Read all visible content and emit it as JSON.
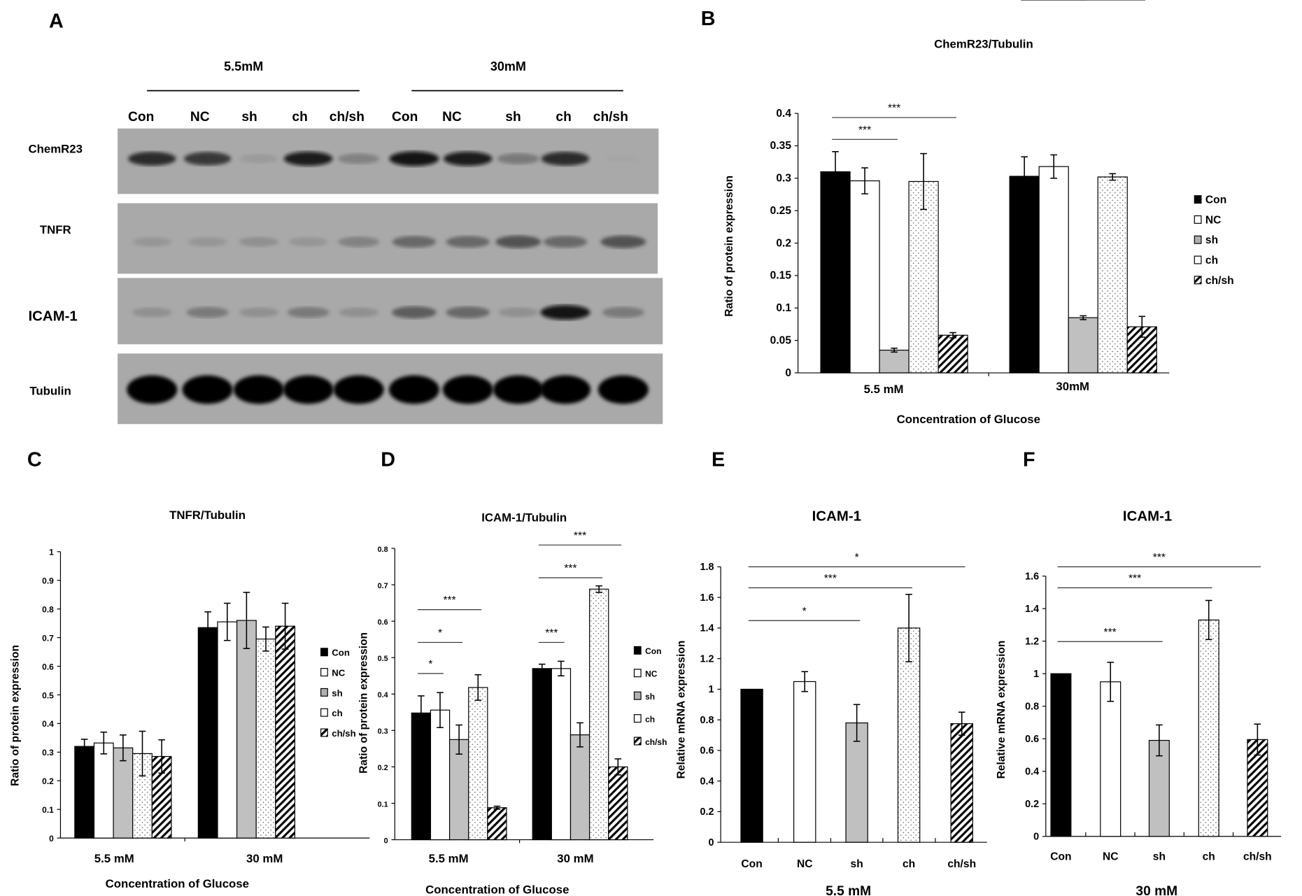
{
  "panel_labels": [
    "A",
    "B",
    "C",
    "D",
    "E",
    "F"
  ],
  "blot": {
    "groups": [
      "5.5mM",
      "30mM"
    ],
    "lanes": [
      "Con",
      "NC",
      "sh",
      "ch",
      "ch/sh",
      "Con",
      "NC",
      "sh",
      "ch",
      "ch/sh"
    ],
    "rows": [
      {
        "label": "ChemR23",
        "band_intensity": [
          0.85,
          0.8,
          0.25,
          0.9,
          0.45,
          0.95,
          0.9,
          0.5,
          0.85,
          0.04
        ]
      },
      {
        "label": "TNFR",
        "band_intensity": [
          0.3,
          0.3,
          0.35,
          0.3,
          0.45,
          0.6,
          0.6,
          0.7,
          0.6,
          0.7
        ]
      },
      {
        "label": "ICAM-1",
        "band_intensity": [
          0.35,
          0.5,
          0.35,
          0.5,
          0.35,
          0.65,
          0.6,
          0.35,
          0.95,
          0.5
        ]
      },
      {
        "label": "Tubulin",
        "band_intensity": [
          1,
          1,
          1,
          1,
          1,
          1,
          1,
          1,
          1,
          1
        ]
      }
    ]
  },
  "chart_data": [
    {
      "panel": "B",
      "type": "bar",
      "title": "ChemR23/Tubulin",
      "xlabel": "Concentration of Glucose",
      "ylabel": "Ratio of protein expression",
      "ylim": [
        0,
        0.4
      ],
      "ytick_step": 0.05,
      "yticks": [
        "0",
        "0.05",
        "0.1",
        "0.15",
        "0.2",
        "0.25",
        "0.3",
        "0.35",
        "0.4"
      ],
      "categories": [
        "5.5 mM",
        "30mM"
      ],
      "legend": [
        "Con",
        "NC",
        "sh",
        "ch",
        "ch/sh"
      ],
      "legend_position": "right",
      "series": [
        {
          "name": "Con",
          "values": [
            0.31,
            0.303
          ],
          "errors": [
            0.031,
            0.03
          ]
        },
        {
          "name": "NC",
          "values": [
            0.296,
            0.318
          ],
          "errors": [
            0.02,
            0.018
          ]
        },
        {
          "name": "sh",
          "values": [
            0.035,
            0.085
          ],
          "errors": [
            0.003,
            0.003
          ]
        },
        {
          "name": "ch",
          "values": [
            0.295,
            0.302
          ],
          "errors": [
            0.043,
            0.005
          ]
        },
        {
          "name": "ch/sh",
          "values": [
            0.058,
            0.071
          ],
          "errors": [
            0.004,
            0.016
          ]
        }
      ],
      "significance": [
        {
          "group": 0,
          "from": "Con",
          "to": "sh",
          "label": "***"
        },
        {
          "group": 0,
          "from": "Con",
          "to": "ch/sh",
          "label": "***"
        },
        {
          "group": 1,
          "from": "Con",
          "to": "sh",
          "label": "***"
        },
        {
          "group": 1,
          "from": "Con",
          "to": "ch/sh",
          "label": "***"
        }
      ]
    },
    {
      "panel": "C",
      "type": "bar",
      "title": "TNFR/Tubulin",
      "xlabel": "Concentration of Glucose",
      "ylabel": "Ratio of protein expression",
      "ylim": [
        0,
        1
      ],
      "ytick_step": 0.1,
      "yticks": [
        "0",
        "0.1",
        "0.2",
        "0.3",
        "0.4",
        "0.5",
        "0.6",
        "0.7",
        "0.8",
        "0.9",
        "1"
      ],
      "categories": [
        "5.5 mM",
        "30 mM"
      ],
      "legend": [
        "Con",
        "NC",
        "sh",
        "ch",
        "ch/sh"
      ],
      "legend_position": "right",
      "series": [
        {
          "name": "Con",
          "values": [
            0.32,
            0.735
          ],
          "errors": [
            0.025,
            0.055
          ]
        },
        {
          "name": "NC",
          "values": [
            0.332,
            0.755
          ],
          "errors": [
            0.038,
            0.065
          ]
        },
        {
          "name": "sh",
          "values": [
            0.315,
            0.76
          ],
          "errors": [
            0.045,
            0.098
          ]
        },
        {
          "name": "ch",
          "values": [
            0.295,
            0.695
          ],
          "errors": [
            0.078,
            0.042
          ]
        },
        {
          "name": "ch/sh",
          "values": [
            0.285,
            0.74
          ],
          "errors": [
            0.058,
            0.08
          ]
        }
      ],
      "significance": []
    },
    {
      "panel": "D",
      "type": "bar",
      "title": "ICAM-1/Tubulin",
      "xlabel": "Concentration of Glucose",
      "ylabel": "Ratio of protein expression",
      "ylim": [
        0,
        0.8
      ],
      "ytick_step": 0.1,
      "yticks": [
        "0",
        "0.1",
        "0.2",
        "0.3",
        "0.4",
        "0.5",
        "0.6",
        "0.7",
        "0.8"
      ],
      "categories": [
        "5.5 mM",
        "30 mM"
      ],
      "legend": [
        "Con",
        "NC",
        "sh",
        "ch",
        "ch/sh"
      ],
      "legend_position": "right",
      "series": [
        {
          "name": "Con",
          "values": [
            0.348,
            0.47
          ],
          "errors": [
            0.047,
            0.012
          ]
        },
        {
          "name": "NC",
          "values": [
            0.356,
            0.47
          ],
          "errors": [
            0.048,
            0.02
          ]
        },
        {
          "name": "sh",
          "values": [
            0.275,
            0.288
          ],
          "errors": [
            0.04,
            0.033
          ]
        },
        {
          "name": "ch",
          "values": [
            0.418,
            0.688
          ],
          "errors": [
            0.035,
            0.009
          ]
        },
        {
          "name": "ch/sh",
          "values": [
            0.088,
            0.2
          ],
          "errors": [
            0.004,
            0.022
          ]
        }
      ],
      "significance": [
        {
          "group": 0,
          "from": "Con",
          "to": "NC",
          "label": "*"
        },
        {
          "group": 0,
          "from": "Con",
          "to": "sh",
          "label": "*"
        },
        {
          "group": 0,
          "from": "Con",
          "to": "ch",
          "label": "***"
        },
        {
          "group": 1,
          "from": "Con",
          "to": "NC",
          "label": "***"
        },
        {
          "group": 1,
          "from": "Con",
          "to": "ch",
          "label": "***"
        },
        {
          "group": 1,
          "from": "Con",
          "to": "ch/sh",
          "label": "***"
        }
      ]
    },
    {
      "panel": "E",
      "type": "bar",
      "title": "ICAM-1",
      "xlabel": "5.5 mM",
      "ylabel": "Relative mRNA  expression",
      "ylim": [
        0,
        1.8
      ],
      "ytick_step": 0.2,
      "yticks": [
        "0",
        "0.2",
        "0.4",
        "0.6",
        "0.8",
        "1",
        "1.2",
        "1.4",
        "1.6",
        "1.8"
      ],
      "categories": [
        "Con",
        "NC",
        "sh",
        "ch",
        "ch/sh"
      ],
      "values": [
        1.0,
        1.05,
        0.78,
        1.4,
        0.775
      ],
      "errors": [
        0,
        0.065,
        0.12,
        0.22,
        0.075
      ],
      "significance": [
        {
          "from": "Con",
          "to": "sh",
          "label": "*"
        },
        {
          "from": "Con",
          "to": "ch",
          "label": "***"
        },
        {
          "from": "Con",
          "to": "ch/sh",
          "label": "*"
        }
      ]
    },
    {
      "panel": "F",
      "type": "bar",
      "title": "ICAM-1",
      "xlabel": "30 mM",
      "ylabel": "Relative mRNA  expression",
      "ylim": [
        0,
        1.6
      ],
      "ytick_step": 0.2,
      "yticks": [
        "0",
        "0.2",
        "0.4",
        "0.6",
        "0.8",
        "1",
        "1.2",
        "1.4",
        "1.6"
      ],
      "categories": [
        "Con",
        "NC",
        "sh",
        "ch",
        "ch/sh"
      ],
      "values": [
        1.0,
        0.95,
        0.59,
        1.33,
        0.595
      ],
      "errors": [
        0,
        0.12,
        0.095,
        0.12,
        0.095
      ],
      "significance": [
        {
          "from": "Con",
          "to": "sh",
          "label": "***"
        },
        {
          "from": "Con",
          "to": "ch",
          "label": "***"
        },
        {
          "from": "Con",
          "to": "ch/sh",
          "label": "***"
        }
      ]
    }
  ]
}
